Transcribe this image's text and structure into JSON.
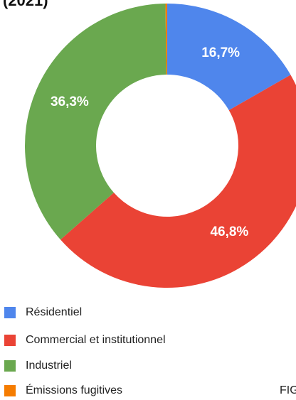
{
  "chart_data": {
    "type": "donut",
    "title": "(2021)",
    "annotation": "FIG",
    "categories": [
      "Résidentiel",
      "Commercial et institutionnel",
      "Industriel",
      "Émissions fugitives"
    ],
    "values": [
      16.7,
      46.8,
      36.3,
      0.2
    ],
    "value_labels": [
      "16,7%",
      "46,8%",
      "36,3%",
      null
    ],
    "colors": [
      "#4f86ec",
      "#ea4335",
      "#6aa84f",
      "#f57c00"
    ],
    "legend": "bottom-left"
  }
}
